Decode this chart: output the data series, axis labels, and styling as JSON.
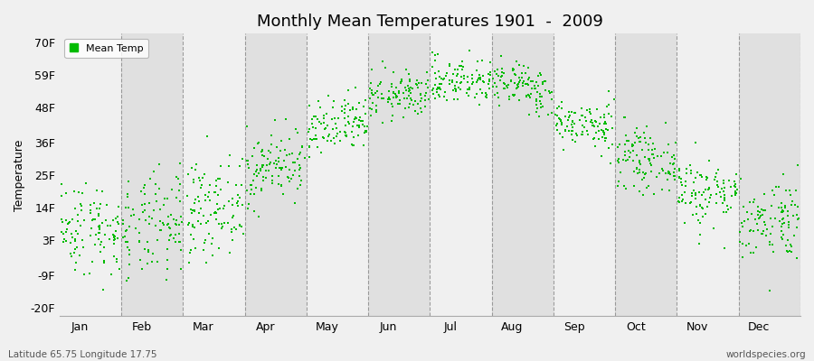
{
  "title": "Monthly Mean Temperatures 1901  -  2009",
  "ylabel": "Temperature",
  "yticks": [
    -20,
    -9,
    3,
    14,
    25,
    36,
    48,
    59,
    70
  ],
  "ytick_labels": [
    "-20F",
    "-9F",
    "3F",
    "14F",
    "25F",
    "36F",
    "48F",
    "59F",
    "70F"
  ],
  "ylim": [
    -23,
    73
  ],
  "months": [
    "Jan",
    "Feb",
    "Mar",
    "Apr",
    "May",
    "Jun",
    "Jul",
    "Aug",
    "Sep",
    "Oct",
    "Nov",
    "Dec"
  ],
  "dot_color": "#00bb00",
  "bg_color": "#f0f0f0",
  "alt_bg_color": "#e0e0e0",
  "footer_left": "Latitude 65.75 Longitude 17.75",
  "footer_right": "worldspecies.org",
  "legend_label": "Mean Temp",
  "n_points": 109,
  "seed": 42,
  "month_means_f": [
    7,
    7,
    14,
    28,
    41,
    52,
    57,
    55,
    42,
    30,
    19,
    10
  ],
  "month_stds_f": [
    8,
    9,
    8,
    6,
    5,
    4,
    4,
    4,
    4,
    5,
    6,
    7
  ]
}
